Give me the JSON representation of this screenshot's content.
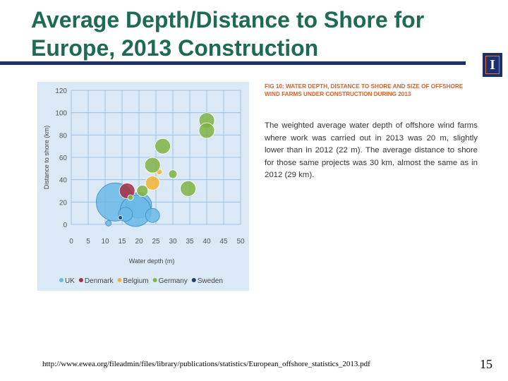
{
  "slide": {
    "title": "Average Depth/Distance to Shore for Europe, 2013 Construction",
    "source_url": "http://www.ewea.org/fileadmin/files/library/publications/statistics/European_offshore_statistics_2013.pdf",
    "page_number": "15",
    "logo_letter": "I",
    "colors": {
      "title": "#1e6a52",
      "rule": "#1c2f6e",
      "logo_border": "#e8732a"
    }
  },
  "figure": {
    "caption": "FIG 10: WATER DEPTH, DISTANCE TO SHORE AND SIZE OF OFFSHORE WIND FARMS UNDER CONSTRUCTION DURING 2013",
    "body": "The weighted average water depth of offshore wind farms where work was carried out in 2013 was 20 m, slightly lower than in 2012 (22 m). The average distance to shore for those same projects was 30 km, almost the same as in 2012 (29 km)."
  },
  "chart_data": {
    "type": "scatter",
    "title": "",
    "xlabel": "Water depth (m)",
    "ylabel": "Distance to shore (km)",
    "xlim": [
      0,
      50
    ],
    "ylim": [
      0,
      120
    ],
    "x_ticks": [
      "0",
      "5",
      "10",
      "15",
      "20",
      "25",
      "30",
      "35",
      "40",
      "45",
      "50"
    ],
    "y_ticks": [
      "0",
      "20",
      "40",
      "60",
      "80",
      "100",
      "120"
    ],
    "grid": true,
    "legend_position": "bottom",
    "series": [
      {
        "name": "UK",
        "color": "#6ab8e6",
        "points": [
          {
            "x": 13,
            "y": 20,
            "size": 27
          },
          {
            "x": 20,
            "y": 17,
            "size": 18
          },
          {
            "x": 19,
            "y": 12,
            "size": 22
          },
          {
            "x": 16,
            "y": 9,
            "size": 10
          },
          {
            "x": 24,
            "y": 8,
            "size": 10
          },
          {
            "x": 11,
            "y": 1,
            "size": 4
          }
        ]
      },
      {
        "name": "Denmark",
        "color": "#a52c3f",
        "points": [
          {
            "x": 16.5,
            "y": 30,
            "size": 11
          }
        ]
      },
      {
        "name": "Belgium",
        "color": "#f5b335",
        "points": [
          {
            "x": 24,
            "y": 37,
            "size": 10
          },
          {
            "x": 26,
            "y": 47,
            "size": 4
          }
        ]
      },
      {
        "name": "Germany",
        "color": "#7fb342",
        "points": [
          {
            "x": 40,
            "y": 93,
            "size": 11
          },
          {
            "x": 40,
            "y": 84,
            "size": 11
          },
          {
            "x": 27,
            "y": 70,
            "size": 11
          },
          {
            "x": 24,
            "y": 53,
            "size": 11
          },
          {
            "x": 30,
            "y": 45,
            "size": 6
          },
          {
            "x": 34.5,
            "y": 32,
            "size": 11
          },
          {
            "x": 21,
            "y": 30,
            "size": 8
          },
          {
            "x": 17.5,
            "y": 24,
            "size": 4
          }
        ]
      },
      {
        "name": "Sweden",
        "color": "#1f3c73",
        "points": [
          {
            "x": 14.5,
            "y": 6,
            "size": 3
          }
        ]
      }
    ]
  }
}
